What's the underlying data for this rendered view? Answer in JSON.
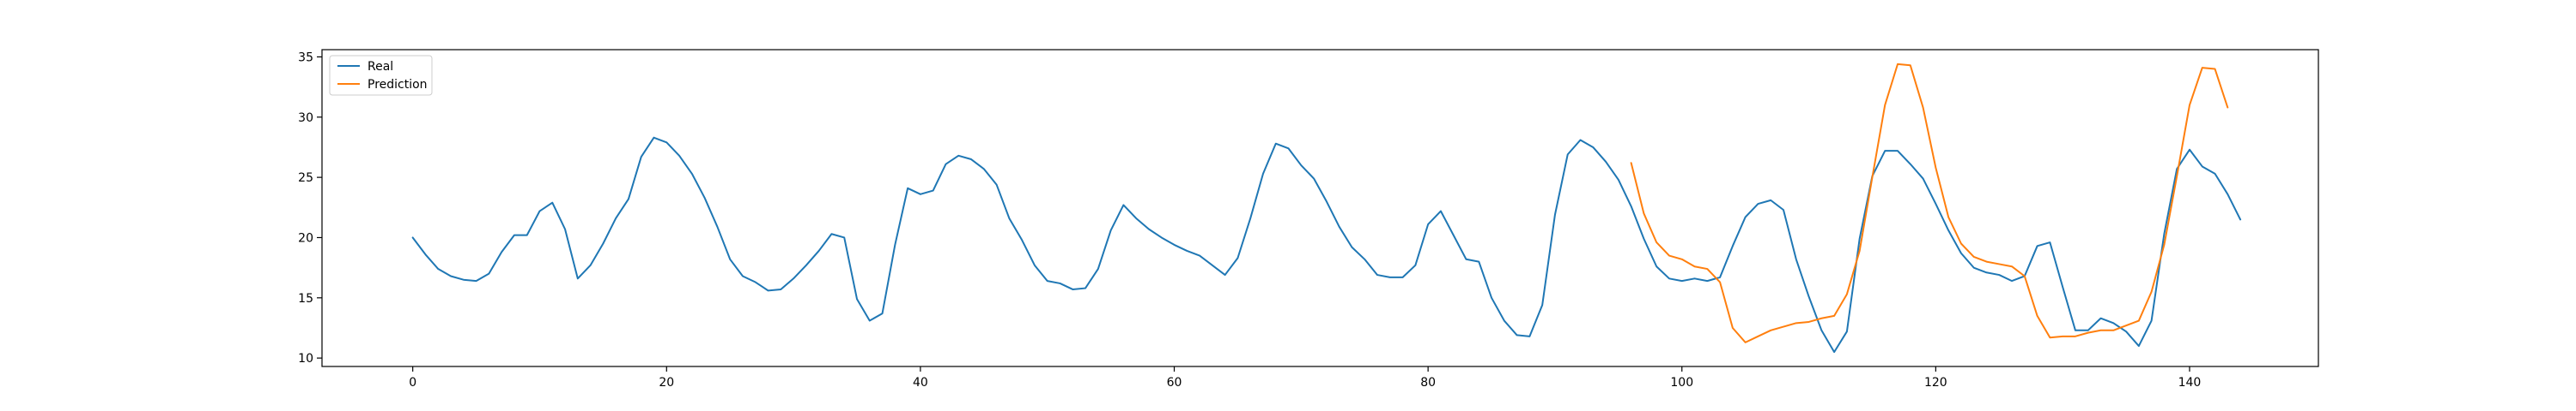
{
  "chart_data": {
    "type": "line",
    "title": "",
    "xlabel": "",
    "ylabel": "",
    "xlim": [
      -7.15,
      150.15
    ],
    "ylim": [
      9.3,
      35.6
    ],
    "xticks": [
      0,
      20,
      40,
      60,
      80,
      100,
      120,
      140
    ],
    "yticks": [
      10,
      15,
      20,
      25,
      30,
      35
    ],
    "grid": false,
    "legend_position": "upper-left",
    "series": [
      {
        "name": "Real",
        "color": "#1f77b4",
        "x_start": 0,
        "values": [
          20.0,
          18.6,
          17.4,
          16.8,
          16.5,
          16.4,
          17.0,
          18.8,
          20.2,
          20.2,
          22.2,
          22.9,
          20.7,
          16.6,
          17.7,
          19.5,
          21.6,
          23.2,
          26.7,
          28.3,
          27.9,
          26.8,
          25.3,
          23.3,
          20.9,
          18.2,
          16.8,
          16.3,
          15.6,
          15.7,
          16.6,
          17.7,
          18.9,
          20.3,
          20.0,
          14.9,
          13.1,
          13.7,
          19.4,
          24.1,
          23.6,
          23.9,
          26.1,
          26.8,
          26.5,
          25.7,
          24.4,
          21.6,
          19.8,
          17.7,
          16.4,
          16.2,
          15.7,
          15.8,
          17.4,
          20.6,
          22.7,
          21.6,
          20.7,
          20.0,
          19.4,
          18.9,
          18.5,
          17.7,
          16.9,
          18.3,
          21.6,
          25.3,
          27.8,
          27.4,
          26.0,
          24.9,
          23.0,
          20.9,
          19.2,
          18.2,
          16.9,
          16.7,
          16.7,
          17.7,
          21.1,
          22.2,
          20.2,
          18.2,
          18.0,
          15.0,
          13.1,
          11.9,
          11.8,
          14.4,
          21.9,
          26.9,
          28.1,
          27.5,
          26.3,
          24.8,
          22.6,
          19.9,
          17.6,
          16.6,
          16.4,
          16.6,
          16.4,
          16.7,
          19.3,
          21.7,
          22.8,
          23.1,
          22.3,
          18.2,
          15.1,
          12.3,
          10.5,
          12.2,
          19.9,
          25.1,
          27.2,
          27.2,
          26.1,
          24.9,
          22.8,
          20.6,
          18.7,
          17.5,
          17.1,
          16.9,
          16.4,
          16.8,
          19.3,
          19.6,
          15.9,
          12.3,
          12.3,
          13.3,
          12.9,
          12.2,
          11.0,
          13.1,
          20.3,
          25.7,
          27.3,
          25.9,
          25.3,
          23.6,
          21.5
        ]
      },
      {
        "name": "Prediction",
        "color": "#ff7f0e",
        "x_start": 96,
        "values": [
          26.2,
          22.0,
          19.6,
          18.5,
          18.2,
          17.6,
          17.4,
          16.3,
          12.5,
          11.3,
          11.8,
          12.3,
          12.6,
          12.9,
          13.0,
          13.3,
          13.5,
          15.3,
          18.9,
          25.0,
          31.0,
          34.4,
          34.3,
          30.8,
          25.8,
          21.7,
          19.5,
          18.4,
          18.0,
          17.8,
          17.6,
          16.8,
          13.5,
          11.7,
          11.8,
          11.8,
          12.1,
          12.3,
          12.3,
          12.7,
          13.1,
          15.5,
          19.4,
          25.1,
          31.0,
          34.1,
          34.0,
          30.8
        ]
      }
    ]
  }
}
